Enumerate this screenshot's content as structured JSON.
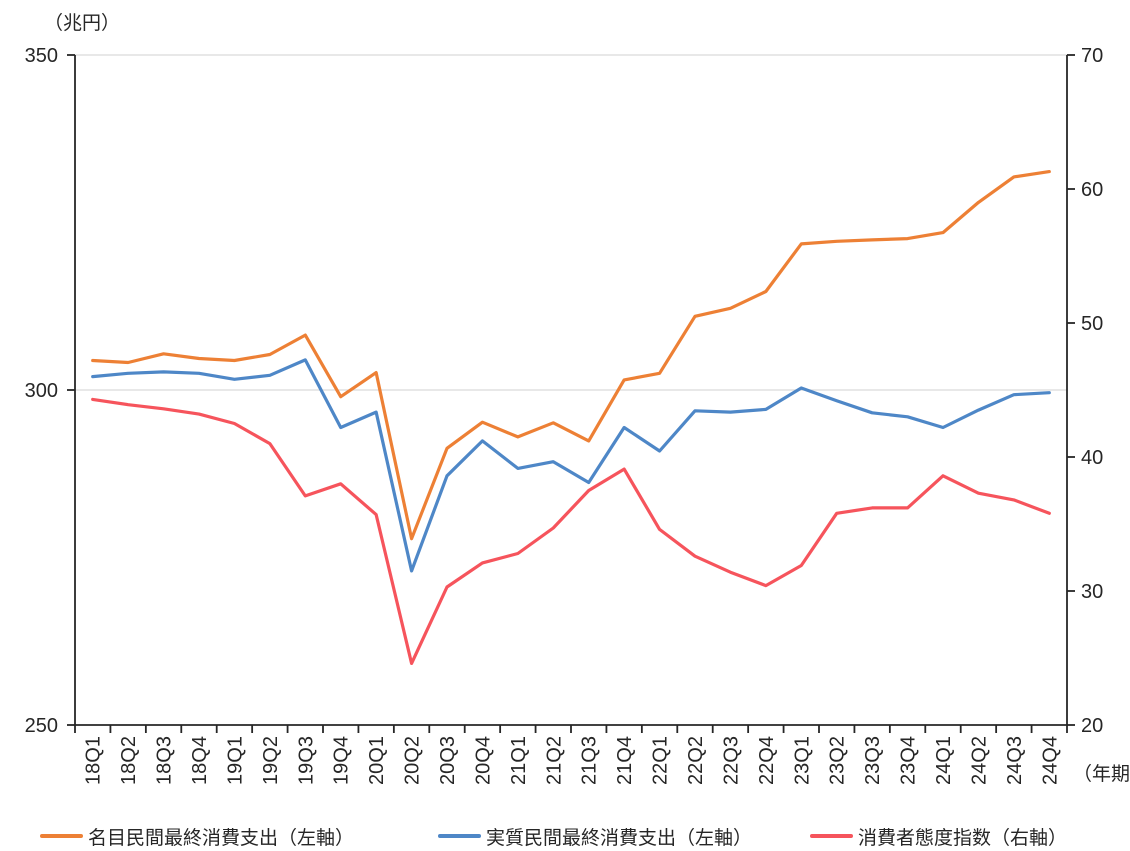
{
  "colors": {
    "grid": "#D9D9D9",
    "axis": "#262626",
    "text": "#262626",
    "background": "#FFFFFF"
  },
  "chart_data": {
    "type": "line",
    "title": "",
    "unit_left": "（兆円）",
    "unit_x": "（年期）",
    "legend_position": "bottom",
    "grid": "horizontal-only",
    "categories": [
      "18Q1",
      "18Q2",
      "18Q3",
      "18Q4",
      "19Q1",
      "19Q2",
      "19Q3",
      "19Q4",
      "20Q1",
      "20Q2",
      "20Q3",
      "20Q4",
      "21Q1",
      "21Q2",
      "21Q3",
      "21Q4",
      "22Q1",
      "22Q2",
      "22Q3",
      "22Q4",
      "23Q1",
      "23Q2",
      "23Q3",
      "23Q4",
      "24Q1",
      "24Q2",
      "24Q3",
      "24Q4"
    ],
    "left_axis": {
      "min": 250,
      "max": 350,
      "tick_labels": [
        "350",
        "300",
        "250"
      ],
      "tick_values": [
        350,
        300,
        250
      ]
    },
    "right_axis": {
      "min": 20,
      "max": 70,
      "tick_labels": [
        "70",
        "60",
        "50",
        "40",
        "30",
        "20"
      ],
      "tick_values": [
        70,
        60,
        50,
        40,
        30,
        20
      ]
    },
    "gridline_left_values": [
      350,
      300
    ],
    "series": [
      {
        "id": "nominal-consumption",
        "name": "名目民間最終消費支出（左軸）",
        "axis": "left",
        "color": "#ED8035",
        "values": [
          304.4,
          304.1,
          305.4,
          304.7,
          304.4,
          305.3,
          308.2,
          299.0,
          302.6,
          277.8,
          291.3,
          295.2,
          293.0,
          295.1,
          292.4,
          301.5,
          302.5,
          311.0,
          312.2,
          314.7,
          321.8,
          322.2,
          322.4,
          322.6,
          323.5,
          328.0,
          331.8,
          332.6
        ]
      },
      {
        "id": "real-consumption",
        "name": "実質民間最終消費支出（左軸）",
        "axis": "left",
        "color": "#4E87C7",
        "values": [
          302.0,
          302.5,
          302.7,
          302.5,
          301.6,
          302.2,
          304.5,
          294.4,
          296.7,
          273.0,
          287.2,
          292.4,
          288.3,
          289.3,
          286.2,
          294.4,
          290.9,
          296.9,
          296.7,
          297.1,
          300.3,
          298.4,
          296.6,
          296.0,
          294.4,
          297.0,
          299.3,
          299.6
        ]
      },
      {
        "id": "consumer-confidence-index",
        "name": "消費者態度指数（右軸）",
        "axis": "right",
        "color": "#F6545C",
        "values": [
          44.3,
          43.9,
          43.6,
          43.2,
          42.5,
          41.0,
          37.1,
          38.0,
          35.7,
          24.6,
          30.3,
          32.1,
          32.8,
          34.7,
          37.5,
          39.1,
          34.6,
          32.6,
          31.4,
          30.4,
          31.9,
          35.8,
          36.2,
          36.2,
          38.6,
          37.3,
          36.8,
          35.8
        ]
      }
    ]
  }
}
